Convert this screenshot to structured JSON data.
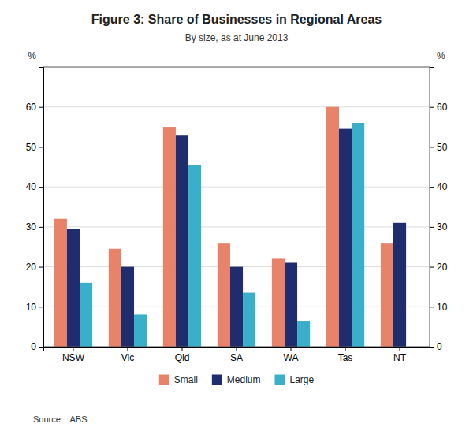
{
  "chart_data": {
    "type": "bar",
    "title": "Figure 3: Share of Businesses in Regional Areas",
    "subtitle": "By size, as at June 2013",
    "source": "Source:   ABS",
    "categories": [
      "NSW",
      "Vic",
      "Qld",
      "SA",
      "WA",
      "Tas",
      "NT"
    ],
    "series": [
      {
        "name": "Small",
        "color": "#E8836A",
        "values": [
          32,
          24.5,
          55,
          26,
          22,
          60,
          26
        ]
      },
      {
        "name": "Medium",
        "color": "#1F2D6E",
        "values": [
          29.5,
          20,
          53,
          20,
          21,
          54.5,
          31
        ]
      },
      {
        "name": "Large",
        "color": "#3AAFCA",
        "values": [
          16,
          8,
          45.5,
          13.5,
          6.5,
          56,
          0
        ]
      }
    ],
    "ylabel": "%",
    "y2label": "%",
    "ylim": [
      0,
      70
    ],
    "yticks": [
      0,
      10,
      20,
      30,
      40,
      50,
      60
    ],
    "y2lim": [
      0,
      70
    ],
    "y2ticks": [
      0,
      10,
      20,
      30,
      40,
      50,
      60
    ],
    "grid": true,
    "legend": "bottom"
  }
}
